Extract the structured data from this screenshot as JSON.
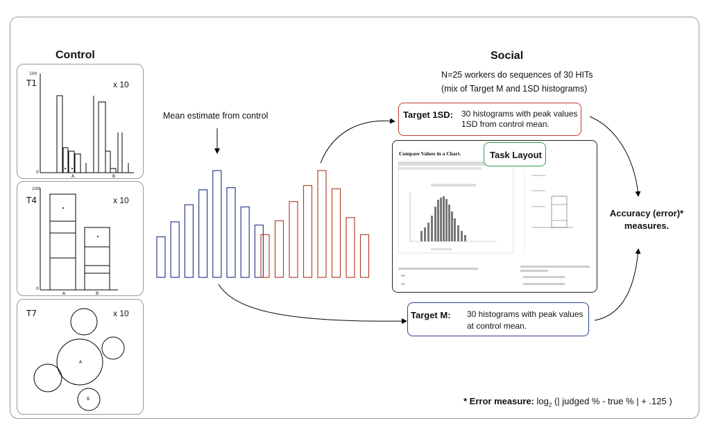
{
  "control": {
    "title": "Control",
    "panels": [
      {
        "id": "T1",
        "label": "T1",
        "multiplier": "x 10",
        "ymax": "100",
        "ymin": "0",
        "cat_a": "A",
        "cat_b": "B"
      },
      {
        "id": "T4",
        "label": "T4",
        "multiplier": "x 10",
        "ymax": "100",
        "ymin": "0",
        "cat_a": "A",
        "cat_b": "B"
      },
      {
        "id": "T7",
        "label": "T7",
        "multiplier": "x 10",
        "circle_a": "A",
        "circle_b": "B"
      }
    ]
  },
  "social": {
    "title": "Social",
    "subtitle_line1": "N=25 workers do sequences of 30 HITs",
    "subtitle_line2": "(mix of Target M and 1SD histograms)"
  },
  "mean_estimate_label": "Mean estimate from control",
  "target_1sd": {
    "label": "Target 1SD:",
    "text_line1": "30 histograms with peak values",
    "text_line2": "1SD from control mean.",
    "color": "#c0392b"
  },
  "target_m": {
    "label": "Target M:",
    "text_line1": "30 histograms with peak values",
    "text_line2": "at control mean.",
    "color": "#2c3e8f"
  },
  "task_layout": {
    "badge": "Task Layout",
    "badge_color": "#2e9e4a",
    "heading": "Compare Values in a Chart."
  },
  "accuracy": {
    "line1": "Accuracy (error)*",
    "line2": "measures."
  },
  "error_measure": {
    "label": "* Error measure:",
    "formula_prefix": "log",
    "formula_sub": "2",
    "formula_rest": "(| judged % - true % | + .125 )"
  },
  "colors": {
    "blue_bars": "#2c3e8f",
    "red_bars": "#b5442a"
  },
  "histograms": {
    "blue": [
      0.38,
      0.52,
      0.68,
      0.82,
      1.0,
      0.84,
      0.66,
      0.49
    ],
    "red": [
      0.4,
      0.53,
      0.71,
      0.86,
      1.0,
      0.83,
      0.56,
      0.4
    ]
  }
}
